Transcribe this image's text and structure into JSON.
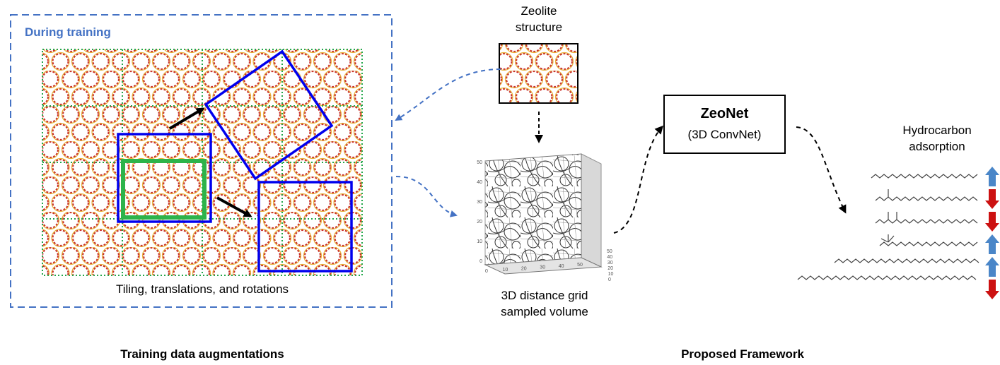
{
  "left_panel": {
    "header": "During training",
    "caption": "Tiling, translations, and rotations",
    "section_title": "Training data augmentations"
  },
  "zeolite": {
    "line1": "Zeolite",
    "line2": "structure"
  },
  "grid_volume": {
    "line1": "3D distance grid",
    "line2": "sampled volume",
    "y_ticks": [
      "0",
      "10",
      "20",
      "30",
      "40",
      "50"
    ],
    "x_ticks": [
      "0",
      "10",
      "20",
      "30",
      "40",
      "50"
    ],
    "z_ticks": [
      "0",
      "10",
      "20",
      "30",
      "40",
      "50"
    ]
  },
  "model": {
    "name": "ZeoNet",
    "subtitle": "(3D ConvNet)"
  },
  "output": {
    "line1": "Hydrocarbon",
    "line2": "adsorption",
    "rows": [
      {
        "direction": "up",
        "color": "#4a86c8"
      },
      {
        "direction": "down",
        "color": "#cc1111"
      },
      {
        "direction": "down",
        "color": "#cc1111"
      },
      {
        "direction": "up",
        "color": "#4a86c8"
      },
      {
        "direction": "up",
        "color": "#4a86c8"
      },
      {
        "direction": "down",
        "color": "#cc1111"
      }
    ]
  },
  "right_section_title": "Proposed Framework",
  "colors": {
    "dashed_frame": "#4472c4",
    "header_blue": "#4472c4",
    "tile_grid": "#22a64a",
    "crop_box": "#0000ee",
    "green_box": "#2db34a",
    "oxygen_red": "#c62020",
    "silicon_gold": "#e8b23a"
  }
}
